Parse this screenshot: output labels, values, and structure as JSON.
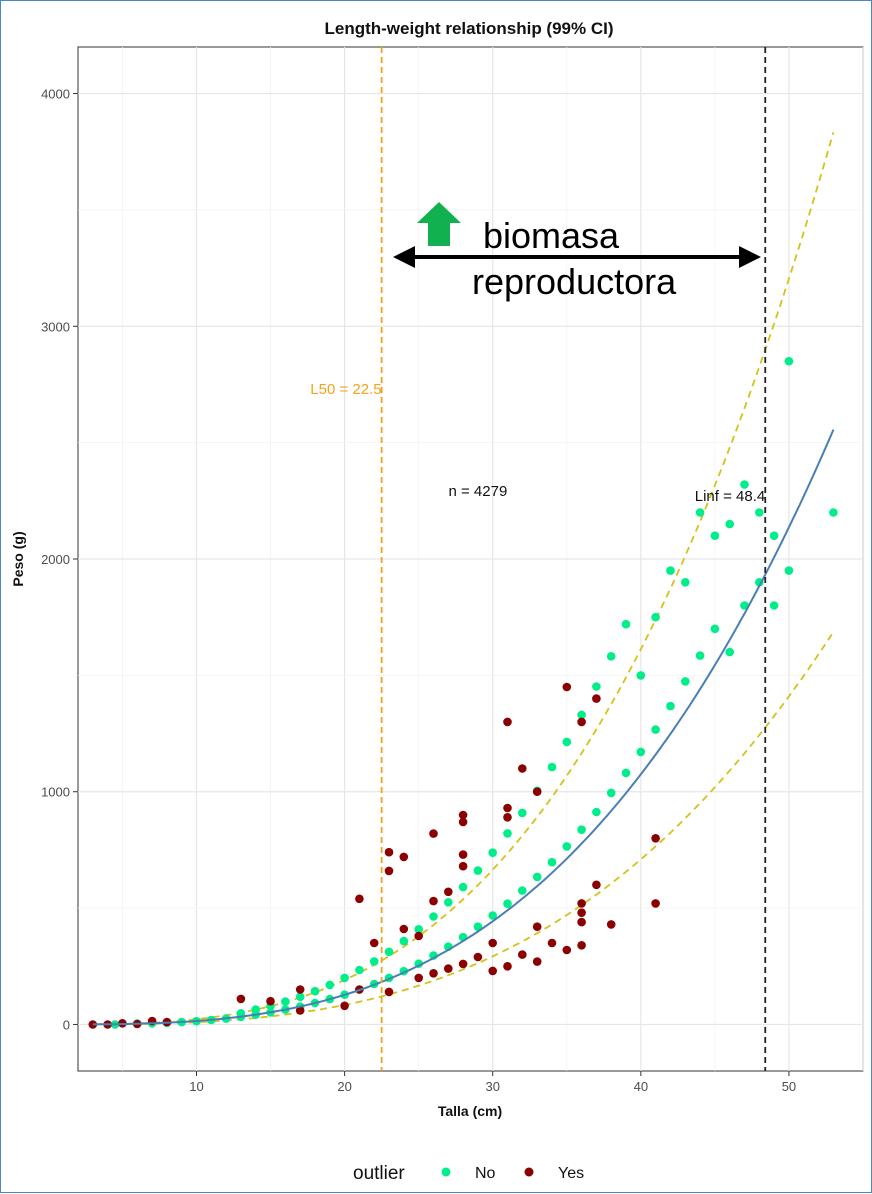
{
  "chart_data": {
    "type": "scatter",
    "title": "Length-weight relationship (99% CI)",
    "xlabel": "Talla (cm)",
    "ylabel": "Peso (g)",
    "xlim": [
      2,
      55
    ],
    "ylim": [
      -200,
      4200
    ],
    "xticks": [
      10,
      20,
      30,
      40,
      50
    ],
    "yticks": [
      0,
      1000,
      2000,
      3000,
      4000
    ],
    "grid": true,
    "legend": {
      "title": "outlier",
      "position": "bottom",
      "entries": [
        {
          "label": "No",
          "color": "#00ee8a"
        },
        {
          "label": "Yes",
          "color": "#8b0000"
        }
      ]
    },
    "fit": {
      "a": 0.01257,
      "b": 3.0785,
      "x_range": [
        3,
        53
      ],
      "color": "#4a7fb5"
    },
    "ci_band": {
      "lower_factor": 0.66,
      "upper_factor": 1.5,
      "color": "#d4c21a"
    },
    "vlines": [
      {
        "name": "L50",
        "x": 22.5,
        "label": "L50 =  22.5",
        "color": "#f2a31a"
      },
      {
        "name": "Linf",
        "x": 48.4,
        "label": "Linf =  48.4",
        "color": "#222222"
      }
    ],
    "annotations": {
      "n_text": "n =  4279",
      "n_at": [
        29,
        2270
      ],
      "biomass_line1": "biomasa",
      "biomass_line2": "reproductora"
    },
    "series": [
      {
        "name": "No",
        "color": "#00ee8a",
        "points": [
          [
            4.5,
            0
          ],
          [
            6,
            4
          ],
          [
            7,
            5
          ],
          [
            8,
            7
          ],
          [
            9,
            10
          ],
          [
            10,
            14
          ],
          [
            11,
            19
          ],
          [
            12,
            25
          ],
          [
            13,
            33
          ],
          [
            13,
            48
          ],
          [
            14,
            42
          ],
          [
            14,
            64
          ],
          [
            15,
            52
          ],
          [
            15,
            80
          ],
          [
            16,
            64
          ],
          [
            16,
            98
          ],
          [
            17,
            77
          ],
          [
            17,
            119
          ],
          [
            18,
            92
          ],
          [
            18,
            143
          ],
          [
            19,
            109
          ],
          [
            19,
            170
          ],
          [
            20,
            128
          ],
          [
            20,
            200
          ],
          [
            21,
            150
          ],
          [
            21,
            234
          ],
          [
            22,
            174
          ],
          [
            22,
            271
          ],
          [
            23,
            200
          ],
          [
            23,
            312
          ],
          [
            24,
            229
          ],
          [
            24,
            358
          ],
          [
            25,
            261
          ],
          [
            25,
            409
          ],
          [
            26,
            296
          ],
          [
            26,
            464
          ],
          [
            27,
            334
          ],
          [
            27,
            525
          ],
          [
            28,
            375
          ],
          [
            28,
            590
          ],
          [
            29,
            420
          ],
          [
            29,
            661
          ],
          [
            30,
            468
          ],
          [
            30,
            738
          ],
          [
            31,
            519
          ],
          [
            31,
            821
          ],
          [
            32,
            575
          ],
          [
            32,
            909
          ],
          [
            33,
            634
          ],
          [
            33,
            1004
          ],
          [
            34,
            697
          ],
          [
            34,
            1106
          ],
          [
            35,
            765
          ],
          [
            35,
            1214
          ],
          [
            36,
            837
          ],
          [
            36,
            1330
          ],
          [
            37,
            913
          ],
          [
            37,
            1452
          ],
          [
            38,
            995
          ],
          [
            38,
            1582
          ],
          [
            39,
            1081
          ],
          [
            39,
            1720
          ],
          [
            40,
            1171
          ],
          [
            40,
            1500
          ],
          [
            41,
            1267
          ],
          [
            41,
            1750
          ],
          [
            42,
            1368
          ],
          [
            42,
            1950
          ],
          [
            43,
            1474
          ],
          [
            43,
            1900
          ],
          [
            44,
            1585
          ],
          [
            44,
            2200
          ],
          [
            45,
            1700
          ],
          [
            45,
            2100
          ],
          [
            46,
            1600
          ],
          [
            46,
            2150
          ],
          [
            47,
            1800
          ],
          [
            47,
            2320
          ],
          [
            48,
            1900
          ],
          [
            48,
            2200
          ],
          [
            49,
            1800
          ],
          [
            49,
            2100
          ],
          [
            50,
            1950
          ],
          [
            50,
            2850
          ],
          [
            53,
            2200
          ]
        ]
      },
      {
        "name": "Yes",
        "color": "#8b0000",
        "points": [
          [
            3,
            0
          ],
          [
            4,
            0
          ],
          [
            5,
            5
          ],
          [
            6,
            2
          ],
          [
            7,
            15
          ],
          [
            8,
            10
          ],
          [
            13,
            110
          ],
          [
            15,
            100
          ],
          [
            17,
            150
          ],
          [
            17,
            60
          ],
          [
            20,
            80
          ],
          [
            21,
            540
          ],
          [
            21,
            150
          ],
          [
            22,
            350
          ],
          [
            23,
            140
          ],
          [
            23,
            740
          ],
          [
            23,
            660
          ],
          [
            24,
            720
          ],
          [
            24,
            410
          ],
          [
            25,
            200
          ],
          [
            25,
            380
          ],
          [
            26,
            820
          ],
          [
            26,
            530
          ],
          [
            26,
            220
          ],
          [
            27,
            570
          ],
          [
            27,
            240
          ],
          [
            28,
            900
          ],
          [
            28,
            870
          ],
          [
            28,
            730
          ],
          [
            28,
            680
          ],
          [
            28,
            260
          ],
          [
            29,
            290
          ],
          [
            30,
            230
          ],
          [
            30,
            350
          ],
          [
            31,
            1300
          ],
          [
            31,
            930
          ],
          [
            31,
            890
          ],
          [
            31,
            250
          ],
          [
            32,
            1100
          ],
          [
            32,
            300
          ],
          [
            33,
            1000
          ],
          [
            33,
            420
          ],
          [
            33,
            270
          ],
          [
            34,
            350
          ],
          [
            35,
            1450
          ],
          [
            35,
            320
          ],
          [
            36,
            1300
          ],
          [
            36,
            520
          ],
          [
            36,
            480
          ],
          [
            36,
            440
          ],
          [
            36,
            340
          ],
          [
            37,
            1400
          ],
          [
            37,
            600
          ],
          [
            38,
            430
          ],
          [
            41,
            520
          ],
          [
            41,
            800
          ]
        ]
      }
    ]
  }
}
